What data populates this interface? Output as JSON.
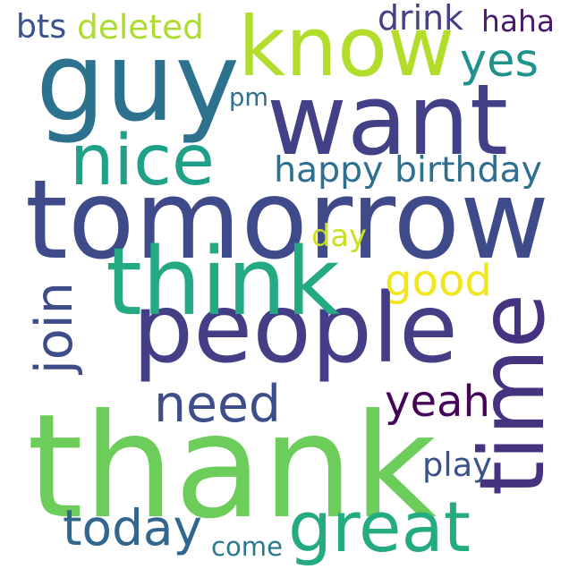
{
  "words": [
    {
      "text": "thank",
      "color": "#6ccd5a"
    },
    {
      "text": "tomorrow",
      "color": "#3e4a89"
    },
    {
      "text": "want",
      "color": "#424086"
    },
    {
      "text": "guy",
      "color": "#2c718e"
    },
    {
      "text": "know",
      "color": "#b2dd2d"
    },
    {
      "text": "people",
      "color": "#433e85"
    },
    {
      "text": "time",
      "color": "#46337f"
    },
    {
      "text": "think",
      "color": "#24aa83"
    },
    {
      "text": "nice",
      "color": "#1fa088"
    },
    {
      "text": "great",
      "color": "#25ab82"
    },
    {
      "text": "today",
      "color": "#31668e"
    },
    {
      "text": "need",
      "color": "#3d4d8a"
    },
    {
      "text": "yeah",
      "color": "#450559"
    },
    {
      "text": "good",
      "color": "#f1e51d"
    },
    {
      "text": "join",
      "color": "#3e4c8a"
    },
    {
      "text": "happy birthday",
      "color": "#2e6e8e"
    },
    {
      "text": "yes",
      "color": "#20928c"
    },
    {
      "text": "drink",
      "color": "#424186"
    },
    {
      "text": "haha",
      "color": "#481b6d"
    },
    {
      "text": "deleted",
      "color": "#addc30"
    },
    {
      "text": "bts",
      "color": "#3b518b"
    },
    {
      "text": "pm",
      "color": "#2d708e"
    },
    {
      "text": "day",
      "color": "#c8e020"
    },
    {
      "text": "play",
      "color": "#3b528b"
    },
    {
      "text": "come",
      "color": "#2a788e"
    }
  ]
}
